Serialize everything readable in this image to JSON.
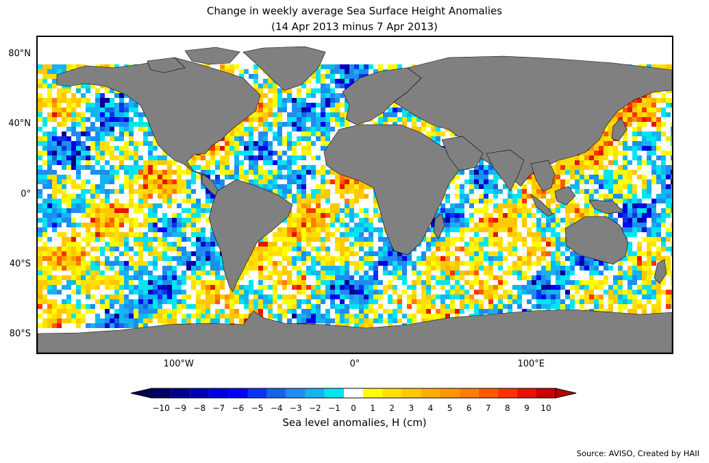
{
  "title": "Change in weekly average Sea Surface Height Anomalies",
  "subtitle": "(14 Apr 2013 minus 7 Apr 2013)",
  "lat_labels": [
    "80°N",
    "40°N",
    "0°",
    "40°S",
    "80°S"
  ],
  "lat_values": [
    80,
    40,
    0,
    -40,
    -80
  ],
  "lon_labels": [
    "100°W",
    "0°",
    "100°E"
  ],
  "lon_values": [
    -100,
    0,
    100
  ],
  "colorbar": {
    "label": "Sea level anomalies, H (cm)",
    "ticks": [
      "−10",
      "−9",
      "−8",
      "−7",
      "−6",
      "−5",
      "−4",
      "−3",
      "−2",
      "−1",
      "0",
      "1",
      "2",
      "3",
      "4",
      "5",
      "6",
      "7",
      "8",
      "9",
      "10"
    ],
    "colors": [
      "#000066",
      "#00008c",
      "#0000b4",
      "#0000dc",
      "#0000ff",
      "#0a32f0",
      "#1464e6",
      "#1e8cf0",
      "#14b4f0",
      "#00e6f0",
      "#ffffff",
      "#ffff00",
      "#ffe100",
      "#ffc800",
      "#ffaf00",
      "#ff9600",
      "#ff7d00",
      "#ff5a00",
      "#ff3200",
      "#e61400",
      "#c80000"
    ],
    "under_color": "#000050",
    "over_color": "#b40000"
  },
  "land_color": "#808080",
  "source": "Source: AVISO, Created by HAII"
}
